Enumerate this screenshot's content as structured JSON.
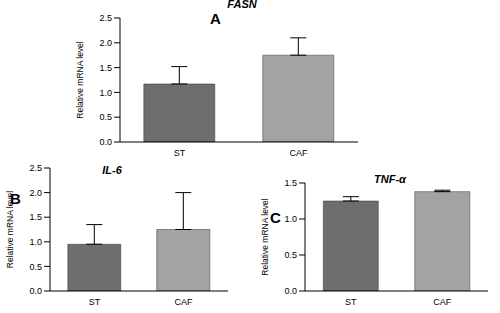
{
  "chart_data": [
    {
      "type": "bar",
      "panel": "A",
      "title": "FASN",
      "y_label": "Relative mRNA level",
      "categories": [
        "ST",
        "CAF"
      ],
      "values": [
        1.17,
        1.75
      ],
      "error": [
        0.35,
        0.35
      ],
      "colors": [
        "#6e6e6e",
        "#a3a3a3"
      ],
      "ylim": [
        0,
        2.5
      ],
      "yticks": [
        {
          "value": 0,
          "label": "0.0"
        },
        0.5,
        {
          "value": 1,
          "label": "1.0"
        },
        1.5,
        {
          "value": 2,
          "label": "2.0"
        },
        2.5
      ],
      "grid": false
    },
    {
      "type": "bar",
      "panel": "B",
      "title": "IL-6",
      "y_label": "Relative mRNA level",
      "categories": [
        "ST",
        "CAF"
      ],
      "values": [
        0.95,
        1.25
      ],
      "error": [
        0.4,
        0.75
      ],
      "colors": [
        "#6e6e6e",
        "#a3a3a3"
      ],
      "ylim": [
        0,
        2.5
      ],
      "yticks": [
        {
          "value": 0,
          "label": "0.0"
        },
        0.5,
        {
          "value": 1,
          "label": "1.0"
        },
        1.5,
        {
          "value": 2,
          "label": "2.0"
        },
        2.5
      ],
      "grid": false
    },
    {
      "type": "bar",
      "panel": "C",
      "title": "TNF-α",
      "y_label": "Relative mRNA level",
      "categories": [
        "ST",
        "CAF"
      ],
      "values": [
        1.25,
        1.38
      ],
      "error": [
        0.06,
        0.02
      ],
      "colors": [
        "#6e6e6e",
        "#a3a3a3"
      ],
      "ylim": [
        0,
        1.5
      ],
      "yticks": [
        {
          "value": 0,
          "label": "0.0"
        },
        0.5,
        {
          "value": 1,
          "label": "1.0"
        },
        1.5
      ],
      "grid": false
    }
  ]
}
